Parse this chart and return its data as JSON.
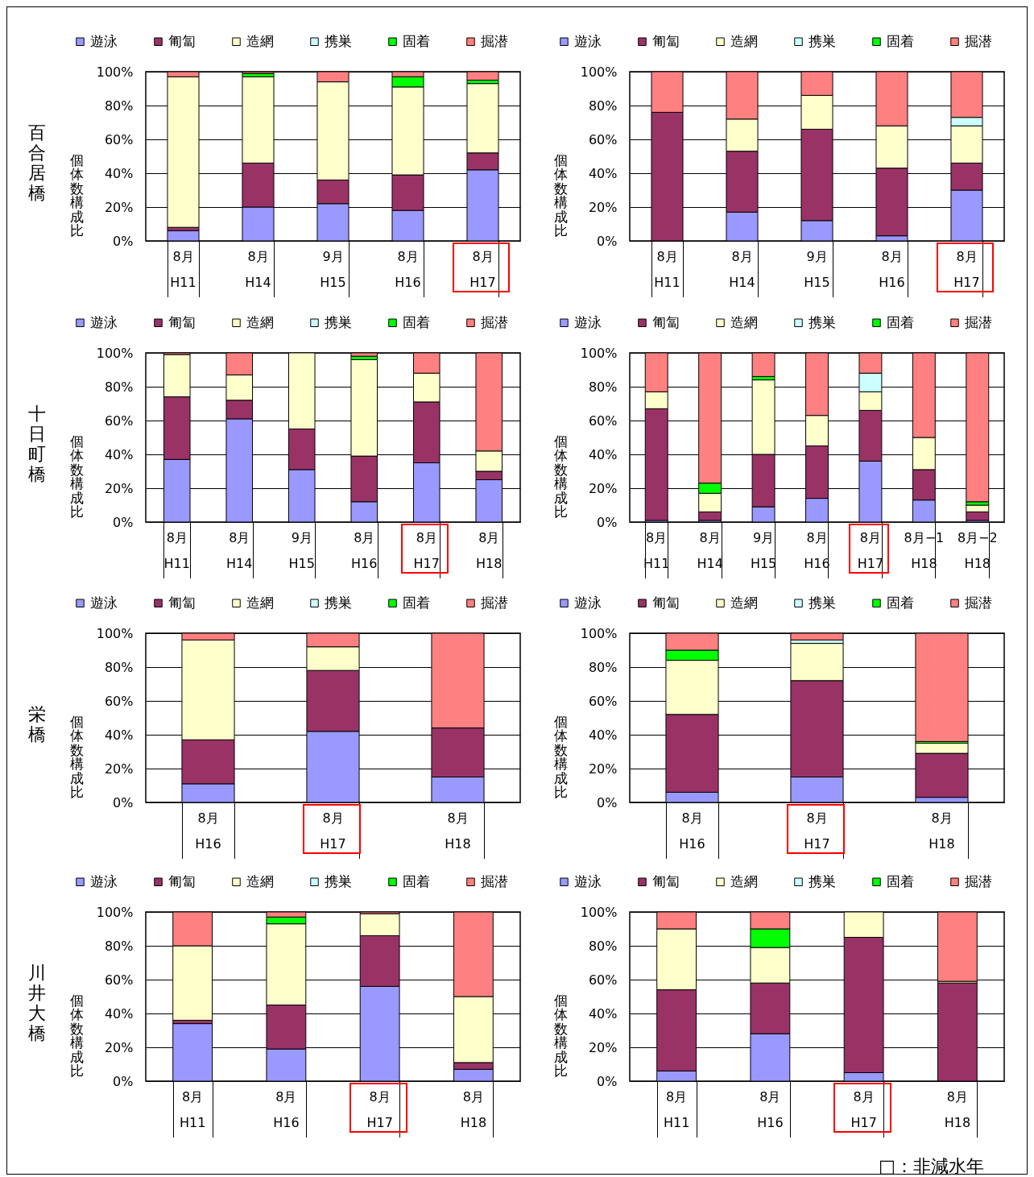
{
  "chart_data": [
    {
      "type": "bar",
      "title": "百合居橋",
      "ylabel": "個体数構成比",
      "stacked": true,
      "legend": "top",
      "grid": "y",
      "categories": [
        "8月\nH11",
        "8月\nH14",
        "9月\nH15",
        "8月\nH16",
        "8月\nH17"
      ],
      "ylim": [
        0,
        100
      ],
      "yticks": [
        {
          "value": 0,
          "label": "0%"
        },
        {
          "value": 20,
          "label": "20%"
        },
        {
          "value": 40,
          "label": "40%"
        },
        {
          "value": 60,
          "label": "60%"
        },
        {
          "value": 80,
          "label": "80%"
        },
        {
          "value": 100,
          "label": "100%"
        }
      ],
      "series": [
        {
          "name": "遊泳",
          "color": "#9999ff",
          "values": [
            6,
            20,
            22,
            18,
            42
          ]
        },
        {
          "name": "匍匐",
          "color": "#993366",
          "values": [
            2,
            26,
            14,
            21,
            10
          ]
        },
        {
          "name": "造網",
          "color": "#ffffcc",
          "values": [
            89,
            51,
            58,
            52,
            41
          ]
        },
        {
          "name": "携巣",
          "color": "#ccffff",
          "values": [
            null,
            null,
            null,
            null,
            null
          ]
        },
        {
          "name": "固着",
          "color": "#00ff00",
          "values": [
            null,
            2,
            null,
            6,
            2
          ]
        },
        {
          "name": "掘潜",
          "color": "#ff8080",
          "values": [
            3,
            1,
            6,
            3,
            5
          ]
        }
      ]
    },
    {
      "type": "bar",
      "ylabel": "個体数構成比",
      "stacked": true,
      "legend": "top",
      "grid": "y",
      "categories": [
        "8月\nH11",
        "8月\nH14",
        "9月\nH15",
        "8月\nH16",
        "8月\nH17"
      ],
      "ylim": [
        0,
        100
      ],
      "yticks": [
        {
          "value": 0,
          "label": "0%"
        },
        {
          "value": 20,
          "label": "20%"
        },
        {
          "value": 40,
          "label": "40%"
        },
        {
          "value": 60,
          "label": "60%"
        },
        {
          "value": 80,
          "label": "80%"
        },
        {
          "value": 100,
          "label": "100%"
        }
      ],
      "series": [
        {
          "name": "遊泳",
          "color": "#9999ff",
          "values": [
            null,
            17,
            12,
            3,
            30
          ]
        },
        {
          "name": "匍匐",
          "color": "#993366",
          "values": [
            76,
            36,
            54,
            40,
            16
          ]
        },
        {
          "name": "造網",
          "color": "#ffffcc",
          "values": [
            null,
            19,
            20,
            25,
            22
          ]
        },
        {
          "name": "携巣",
          "color": "#ccffff",
          "values": [
            null,
            null,
            null,
            null,
            5
          ]
        },
        {
          "name": "固着",
          "color": "#00ff00",
          "values": [
            null,
            null,
            null,
            null,
            null
          ]
        },
        {
          "name": "掘潜",
          "color": "#ff8080",
          "values": [
            24,
            28,
            14,
            32,
            27
          ]
        }
      ]
    },
    {
      "type": "bar",
      "title": "十日町橋",
      "ylabel": "個体数構成比",
      "stacked": true,
      "legend": "top",
      "grid": "y",
      "categories": [
        "8月\nH11",
        "8月\nH14",
        "9月\nH15",
        "8月\nH16",
        "8月\nH17",
        "8月\nH18"
      ],
      "ylim": [
        0,
        100
      ],
      "yticks": [
        {
          "value": 0,
          "label": "0%"
        },
        {
          "value": 20,
          "label": "20%"
        },
        {
          "value": 40,
          "label": "40%"
        },
        {
          "value": 60,
          "label": "60%"
        },
        {
          "value": 80,
          "label": "80%"
        },
        {
          "value": 100,
          "label": "100%"
        }
      ],
      "series": [
        {
          "name": "遊泳",
          "color": "#9999ff",
          "values": [
            37,
            61,
            31,
            12,
            35,
            25
          ]
        },
        {
          "name": "匍匐",
          "color": "#993366",
          "values": [
            37,
            11,
            24,
            27,
            36,
            5
          ]
        },
        {
          "name": "造網",
          "color": "#ffffcc",
          "values": [
            25,
            15,
            45,
            57,
            17,
            12
          ]
        },
        {
          "name": "携巣",
          "color": "#ccffff",
          "values": [
            null,
            null,
            null,
            null,
            null,
            null
          ]
        },
        {
          "name": "固着",
          "color": "#00ff00",
          "values": [
            null,
            null,
            null,
            2,
            null,
            null
          ]
        },
        {
          "name": "掘潜",
          "color": "#ff8080",
          "values": [
            1,
            13,
            null,
            2,
            12,
            58
          ]
        }
      ]
    },
    {
      "type": "bar",
      "ylabel": "個体数構成比",
      "stacked": true,
      "legend": "top",
      "grid": "y",
      "categories": [
        "8月\nH11",
        "8月\nH14",
        "9月\nH15",
        "8月\nH16",
        "8月\nH17",
        "8月−1\nH18",
        "8月−2\nH18"
      ],
      "ylim": [
        0,
        100
      ],
      "yticks": [
        {
          "value": 0,
          "label": "0%"
        },
        {
          "value": 20,
          "label": "20%"
        },
        {
          "value": 40,
          "label": "40%"
        },
        {
          "value": 60,
          "label": "60%"
        },
        {
          "value": 80,
          "label": "80%"
        },
        {
          "value": 100,
          "label": "100%"
        }
      ],
      "series": [
        {
          "name": "遊泳",
          "color": "#9999ff",
          "values": [
            1,
            1,
            9,
            14,
            36,
            13,
            1
          ]
        },
        {
          "name": "匍匐",
          "color": "#993366",
          "values": [
            66,
            5,
            31,
            31,
            30,
            18,
            5
          ]
        },
        {
          "name": "造網",
          "color": "#ffffcc",
          "values": [
            10,
            11,
            44,
            18,
            11,
            19,
            4
          ]
        },
        {
          "name": "携巣",
          "color": "#ccffff",
          "values": [
            null,
            null,
            null,
            null,
            11,
            null,
            null
          ]
        },
        {
          "name": "固着",
          "color": "#00ff00",
          "values": [
            null,
            6,
            2,
            null,
            null,
            null,
            2
          ]
        },
        {
          "name": "掘潜",
          "color": "#ff8080",
          "values": [
            23,
            77,
            14,
            37,
            12,
            50,
            88
          ]
        }
      ]
    },
    {
      "type": "bar",
      "title": "栄橋",
      "ylabel": "個体数構成比",
      "stacked": true,
      "legend": "top",
      "grid": "y",
      "categories": [
        "8月\nH16",
        "8月\nH17",
        "8月\nH18"
      ],
      "ylim": [
        0,
        100
      ],
      "yticks": [
        {
          "value": 0,
          "label": "0%"
        },
        {
          "value": 20,
          "label": "20%"
        },
        {
          "value": 40,
          "label": "40%"
        },
        {
          "value": 60,
          "label": "60%"
        },
        {
          "value": 80,
          "label": "80%"
        },
        {
          "value": 100,
          "label": "100%"
        }
      ],
      "series": [
        {
          "name": "遊泳",
          "color": "#9999ff",
          "values": [
            11,
            42,
            15
          ]
        },
        {
          "name": "匍匐",
          "color": "#993366",
          "values": [
            26,
            36,
            29
          ]
        },
        {
          "name": "造網",
          "color": "#ffffcc",
          "values": [
            59,
            14,
            null
          ]
        },
        {
          "name": "携巣",
          "color": "#ccffff",
          "values": [
            null,
            null,
            null
          ]
        },
        {
          "name": "固着",
          "color": "#00ff00",
          "values": [
            null,
            null,
            null
          ]
        },
        {
          "name": "掘潜",
          "color": "#ff8080",
          "values": [
            4,
            8,
            56
          ]
        }
      ]
    },
    {
      "type": "bar",
      "ylabel": "個体数構成比",
      "stacked": true,
      "legend": "top",
      "grid": "y",
      "categories": [
        "8月\nH16",
        "8月\nH17",
        "8月\nH18"
      ],
      "ylim": [
        0,
        100
      ],
      "yticks": [
        {
          "value": 0,
          "label": "0%"
        },
        {
          "value": 20,
          "label": "20%"
        },
        {
          "value": 40,
          "label": "40%"
        },
        {
          "value": 60,
          "label": "60%"
        },
        {
          "value": 80,
          "label": "80%"
        },
        {
          "value": 100,
          "label": "100%"
        }
      ],
      "series": [
        {
          "name": "遊泳",
          "color": "#9999ff",
          "values": [
            6,
            15,
            3
          ]
        },
        {
          "name": "匍匐",
          "color": "#993366",
          "values": [
            46,
            57,
            26
          ]
        },
        {
          "name": "造網",
          "color": "#ffffcc",
          "values": [
            32,
            22,
            6
          ]
        },
        {
          "name": "携巣",
          "color": "#ccffff",
          "values": [
            null,
            2,
            null
          ]
        },
        {
          "name": "固着",
          "color": "#00ff00",
          "values": [
            6,
            null,
            1
          ]
        },
        {
          "name": "掘潜",
          "color": "#ff8080",
          "values": [
            10,
            4,
            64
          ]
        }
      ]
    },
    {
      "type": "bar",
      "title": "川井大橋",
      "ylabel": "個体数構成比",
      "stacked": true,
      "legend": "top",
      "grid": "y",
      "categories": [
        "8月\nH11",
        "8月\nH16",
        "8月\nH17",
        "8月\nH18"
      ],
      "ylim": [
        0,
        100
      ],
      "yticks": [
        {
          "value": 0,
          "label": "0%"
        },
        {
          "value": 20,
          "label": "20%"
        },
        {
          "value": 40,
          "label": "40%"
        },
        {
          "value": 60,
          "label": "60%"
        },
        {
          "value": 80,
          "label": "80%"
        },
        {
          "value": 100,
          "label": "100%"
        }
      ],
      "series": [
        {
          "name": "遊泳",
          "color": "#9999ff",
          "values": [
            34,
            19,
            56,
            7
          ]
        },
        {
          "name": "匍匐",
          "color": "#993366",
          "values": [
            2,
            26,
            30,
            4
          ]
        },
        {
          "name": "造網",
          "color": "#ffffcc",
          "values": [
            44,
            48,
            13,
            39
          ]
        },
        {
          "name": "携巣",
          "color": "#ccffff",
          "values": [
            null,
            null,
            null,
            null
          ]
        },
        {
          "name": "固着",
          "color": "#00ff00",
          "values": [
            null,
            4,
            null,
            null
          ]
        },
        {
          "name": "掘潜",
          "color": "#ff8080",
          "values": [
            20,
            3,
            1,
            50
          ]
        }
      ]
    },
    {
      "type": "bar",
      "ylabel": "個体数構成比",
      "stacked": true,
      "legend": "top",
      "grid": "y",
      "categories": [
        "8月\nH11",
        "8月\nH16",
        "8月\nH17",
        "8月\nH18"
      ],
      "ylim": [
        0,
        100
      ],
      "yticks": [
        {
          "value": 0,
          "label": "0%"
        },
        {
          "value": 20,
          "label": "20%"
        },
        {
          "value": 40,
          "label": "40%"
        },
        {
          "value": 60,
          "label": "60%"
        },
        {
          "value": 80,
          "label": "80%"
        },
        {
          "value": 100,
          "label": "100%"
        }
      ],
      "annotations": [
        "□：非減水年"
      ],
      "series": [
        {
          "name": "遊泳",
          "color": "#9999ff",
          "values": [
            6,
            28,
            5,
            null
          ]
        },
        {
          "name": "匍匐",
          "color": "#993366",
          "values": [
            48,
            30,
            80,
            58
          ]
        },
        {
          "name": "造網",
          "color": "#ffffcc",
          "values": [
            36,
            21,
            15,
            1
          ]
        },
        {
          "name": "携巣",
          "color": "#ccffff",
          "values": [
            null,
            null,
            null,
            null
          ]
        },
        {
          "name": "固着",
          "color": "#00ff00",
          "values": [
            null,
            11,
            null,
            null
          ]
        },
        {
          "name": "掘潜",
          "color": "#ff8080",
          "values": [
            10,
            10,
            null,
            41
          ]
        }
      ]
    }
  ]
}
